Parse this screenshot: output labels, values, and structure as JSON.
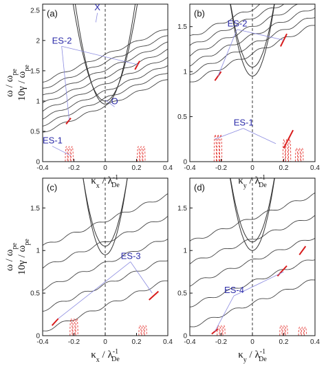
{
  "chart_data": [
    {
      "type": "line",
      "panel_label": "(a)",
      "xlabel_base": "κ",
      "xlabel_sub": "x",
      "xlabel_div": " / λ",
      "xlabel_div_sub": "De",
      "xlabel_div_sup": "-1",
      "ylabel_line1": "ω / ω",
      "ylabel_line1_sub": "pe",
      "ylabel_line2": "10γ / ω",
      "ylabel_line2_sub": "pe",
      "xlim": [
        -0.4,
        0.4
      ],
      "ylim": [
        0,
        2.6
      ],
      "xticks": [
        "-0.4",
        "-0.2",
        "0",
        "0.2",
        "0.4"
      ],
      "yticks": [
        "0",
        "0.5",
        "1",
        "1.5",
        "2",
        "2.5"
      ],
      "ytick_values": [
        0,
        0.5,
        1,
        1.5,
        2,
        2.5
      ],
      "dashed_vertical_at": 0,
      "annotations": [
        {
          "text": "X",
          "x": -0.05,
          "y": 2.5,
          "target": [
            -0.06,
            2.3
          ]
        },
        {
          "text": "O",
          "x": 0.06,
          "y": 0.95,
          "target": [
            0.0,
            1.02
          ]
        },
        {
          "text": "ES-2",
          "x": -0.34,
          "y": 1.95,
          "targets": [
            [
              -0.23,
              0.68
            ],
            [
              0.21,
              1.6
            ]
          ]
        },
        {
          "text": "ES-1",
          "x": -0.4,
          "y": 0.3,
          "targets": [
            [
              -0.22,
              0.1
            ]
          ]
        }
      ],
      "parabolas": {
        "y0": [
          0.95,
          1.0
        ],
        "k": [
          45,
          38
        ]
      },
      "lines": {
        "slope": 2.2,
        "intercepts": [
          0.48,
          0.6,
          0.72,
          0.84,
          0.96,
          1.08,
          1.2,
          1.32
        ]
      },
      "red_segments": [
        [
          -0.25,
          0.62,
          -0.22,
          0.72
        ],
        [
          0.19,
          1.52,
          0.22,
          1.66
        ]
      ],
      "damping_peaks": [
        {
          "x": -0.23,
          "h": 0.25
        },
        {
          "x": 0.23,
          "h": 0.25
        }
      ]
    },
    {
      "type": "line",
      "panel_label": "(b)",
      "xlabel_base": "κ",
      "xlabel_sub": "y",
      "xlabel_div": " / λ",
      "xlabel_div_sub": "De",
      "xlabel_div_sup": "-1",
      "xlim": [
        -0.4,
        0.4
      ],
      "ylim": [
        0,
        1.75
      ],
      "xticks": [
        "-0.4",
        "-0.2",
        "0",
        "0.2",
        "0.4"
      ],
      "yticks": [
        "0",
        "0.5",
        "1",
        "1.5"
      ],
      "ytick_values": [
        0,
        0.5,
        1,
        1.5
      ],
      "dashed_vertical_at": 0,
      "annotations": [
        {
          "text": "ES-2",
          "x": -0.16,
          "y": 1.5,
          "targets": [
            [
              -0.22,
              0.95
            ],
            [
              0.2,
              1.35
            ]
          ]
        },
        {
          "text": "ES-1",
          "x": -0.12,
          "y": 0.4,
          "targets": [
            [
              -0.24,
              0.25
            ],
            [
              0.15,
              0.2
            ]
          ]
        }
      ],
      "parabolas": {
        "y0": [
          0.95,
          1.05
        ],
        "k": [
          40,
          36
        ]
      },
      "lines": {
        "slope": 1.6,
        "intercepts": [
          0.88,
          0.98,
          1.08,
          1.18,
          1.28,
          1.38
        ]
      },
      "red_segments": [
        [
          -0.24,
          0.9,
          -0.2,
          1.0
        ],
        [
          0.18,
          1.28,
          0.22,
          1.42
        ],
        [
          0.2,
          0.15,
          0.26,
          0.35
        ]
      ],
      "damping_peaks": [
        {
          "x": -0.22,
          "h": 0.3
        },
        {
          "x": 0.22,
          "h": 0.25
        },
        {
          "x": 0.3,
          "h": 0.15
        }
      ]
    },
    {
      "type": "line",
      "panel_label": "(c)",
      "xlabel_base": "κ",
      "xlabel_sub": "x",
      "xlabel_div": " / λ",
      "xlabel_div_sub": "De",
      "xlabel_div_sup": "-1",
      "ylabel_line1": "ω / ω",
      "ylabel_line1_sub": "pe",
      "ylabel_line2": "10γ / ω",
      "ylabel_line2_sub": "pe",
      "xlim": [
        -0.4,
        0.4
      ],
      "ylim": [
        0,
        1.85
      ],
      "xticks": [
        "-0.4",
        "-0.2",
        "0",
        "0.2",
        "0.4"
      ],
      "yticks": [
        "0",
        "0.5",
        "1",
        "1.5"
      ],
      "ytick_values": [
        0,
        0.5,
        1,
        1.5
      ],
      "dashed_vertical_at": 0,
      "annotations": [
        {
          "text": "ES-3",
          "x": 0.1,
          "y": 0.9,
          "targets": [
            [
              -0.3,
              0.2
            ],
            [
              0.3,
              0.5
            ]
          ]
        }
      ],
      "parabolas": {
        "y0": [
          0.95,
          1.05
        ],
        "k": [
          45,
          40
        ]
      },
      "lines": {
        "slope": 1.5,
        "intercepts": [
          0.05,
          0.3,
          0.55,
          0.8,
          1.05
        ]
      },
      "red_segments": [
        [
          -0.34,
          0.12,
          -0.3,
          0.2
        ],
        [
          0.28,
          0.42,
          0.34,
          0.52
        ]
      ],
      "damping_peaks": [
        {
          "x": -0.2,
          "h": 0.2
        },
        {
          "x": 0.24,
          "h": 0.12
        }
      ]
    },
    {
      "type": "line",
      "panel_label": "(d)",
      "xlabel_base": "κ",
      "xlabel_sub": "y",
      "xlabel_div": " / λ",
      "xlabel_div_sub": "De",
      "xlabel_div_sup": "-1",
      "xlim": [
        -0.4,
        0.4
      ],
      "ylim": [
        0,
        1.85
      ],
      "xticks": [
        "-0.4",
        "-0.2",
        "0",
        "0.2",
        "0.4"
      ],
      "yticks": [
        "0",
        "0.5",
        "1",
        "1.5"
      ],
      "ytick_values": [
        0,
        0.5,
        1,
        1.5
      ],
      "dashed_vertical_at": 0,
      "annotations": [
        {
          "text": "ES-4",
          "x": -0.18,
          "y": 0.5,
          "targets": [
            [
              -0.24,
              0.05
            ],
            [
              0.2,
              0.75
            ]
          ]
        }
      ],
      "parabolas": {
        "y0": [
          1.0,
          1.1
        ],
        "k": [
          42,
          38
        ]
      },
      "lines": {
        "slope": 1.4,
        "intercepts": [
          0.1,
          0.35,
          0.6,
          0.85,
          1.1
        ]
      },
      "red_segments": [
        [
          -0.26,
          0.02,
          -0.22,
          0.08
        ],
        [
          0.16,
          0.7,
          0.22,
          0.82
        ],
        [
          0.3,
          0.95,
          0.34,
          1.05
        ]
      ],
      "damping_peaks": [
        {
          "x": -0.2,
          "h": 0.12
        },
        {
          "x": 0.2,
          "h": 0.12
        },
        {
          "x": 0.32,
          "h": 0.1
        }
      ]
    }
  ]
}
